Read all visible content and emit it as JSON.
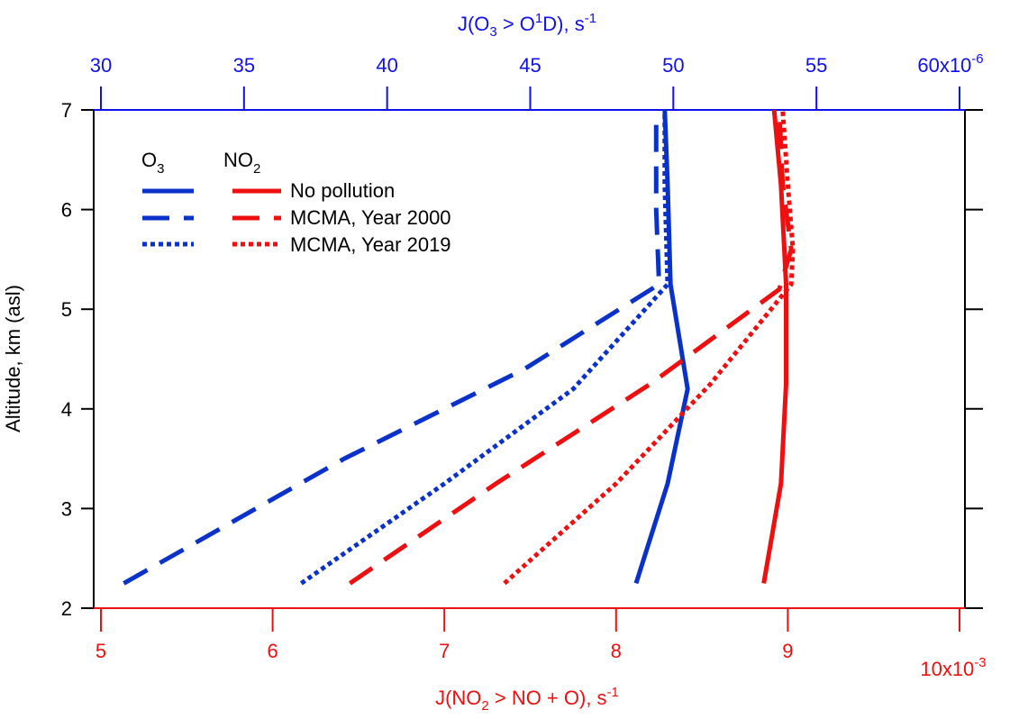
{
  "chart_data": {
    "type": "line",
    "colors": {
      "o3": "#0a32c8",
      "no2": "#ee1010",
      "top_axis": "#1010ee",
      "bottom_axis": "#ee1010",
      "left_axis": "#000000"
    },
    "y_axis": {
      "label": "Altitude, km (asl)",
      "range": [
        2,
        7
      ],
      "ticks": [
        "2",
        "3",
        "4",
        "5",
        "6",
        "7"
      ]
    },
    "top_axis": {
      "label_main": "J(O",
      "label_sub1": "3",
      "label_mid": " > O",
      "label_sup": "1",
      "label_end": "D), s",
      "label_unit_sup": "-1",
      "range": [
        30,
        60
      ],
      "ticks": [
        "30",
        "35",
        "40",
        "45",
        "50",
        "55"
      ],
      "multiplier_label": "60x10",
      "multiplier_exp": "-6"
    },
    "bottom_axis": {
      "label_main": "J(NO",
      "label_sub": "2",
      "label_end": " > NO + O), s",
      "label_unit_sup": "-1",
      "range": [
        5,
        10
      ],
      "ticks": [
        "5",
        "6",
        "7",
        "8",
        "9"
      ],
      "multiplier_label": "10x10",
      "multiplier_exp": "-3"
    },
    "legend": {
      "placement": "top-left",
      "o3_header": "O",
      "o3_header_sub": "3",
      "no2_header": "NO",
      "no2_header_sub": "2",
      "entries": [
        "No pollution",
        "MCMA, Year 2000",
        "MCMA, Year 2019"
      ]
    },
    "series": [
      {
        "name": "No pollution",
        "species": "O3",
        "axis": "top",
        "style": "solid",
        "points": [
          [
            48.7,
            2.25
          ],
          [
            49.8,
            3.25
          ],
          [
            50.5,
            4.2
          ],
          [
            49.9,
            5.25
          ],
          [
            49.8,
            6.25
          ],
          [
            49.7,
            7.0
          ]
        ]
      },
      {
        "name": "MCMA, Year 2000",
        "species": "O3",
        "axis": "top",
        "style": "dashed",
        "points": [
          [
            30.8,
            2.25
          ],
          [
            38.5,
            3.5
          ],
          [
            44.8,
            4.4
          ],
          [
            49.5,
            5.25
          ],
          [
            49.4,
            6.0
          ],
          [
            49.4,
            6.9
          ]
        ]
      },
      {
        "name": "MCMA, Year 2019",
        "species": "O3",
        "axis": "top",
        "style": "dotted",
        "points": [
          [
            37.0,
            2.25
          ],
          [
            42.0,
            3.25
          ],
          [
            46.5,
            4.2
          ],
          [
            49.8,
            5.25
          ],
          [
            49.7,
            6.25
          ],
          [
            49.7,
            7.0
          ]
        ]
      },
      {
        "name": "No pollution",
        "species": "NO2",
        "axis": "bottom",
        "style": "solid",
        "points": [
          [
            8.86,
            2.25
          ],
          [
            8.96,
            3.25
          ],
          [
            8.99,
            4.25
          ],
          [
            8.99,
            5.25
          ],
          [
            8.96,
            6.25
          ],
          [
            8.92,
            7.0
          ]
        ]
      },
      {
        "name": "MCMA, Year 2000",
        "species": "NO2",
        "axis": "bottom",
        "style": "dashed",
        "points": [
          [
            6.45,
            2.25
          ],
          [
            7.3,
            3.25
          ],
          [
            8.2,
            4.25
          ],
          [
            8.95,
            5.2
          ],
          [
            9.02,
            5.6
          ],
          [
            8.97,
            6.25
          ],
          [
            8.95,
            7.0
          ]
        ]
      },
      {
        "name": "MCMA, Year 2019",
        "species": "NO2",
        "axis": "bottom",
        "style": "dotted",
        "points": [
          [
            7.35,
            2.25
          ],
          [
            8.0,
            3.25
          ],
          [
            8.55,
            4.25
          ],
          [
            9.02,
            5.25
          ],
          [
            9.03,
            5.6
          ],
          [
            9.0,
            6.25
          ],
          [
            8.97,
            7.0
          ]
        ]
      }
    ]
  }
}
